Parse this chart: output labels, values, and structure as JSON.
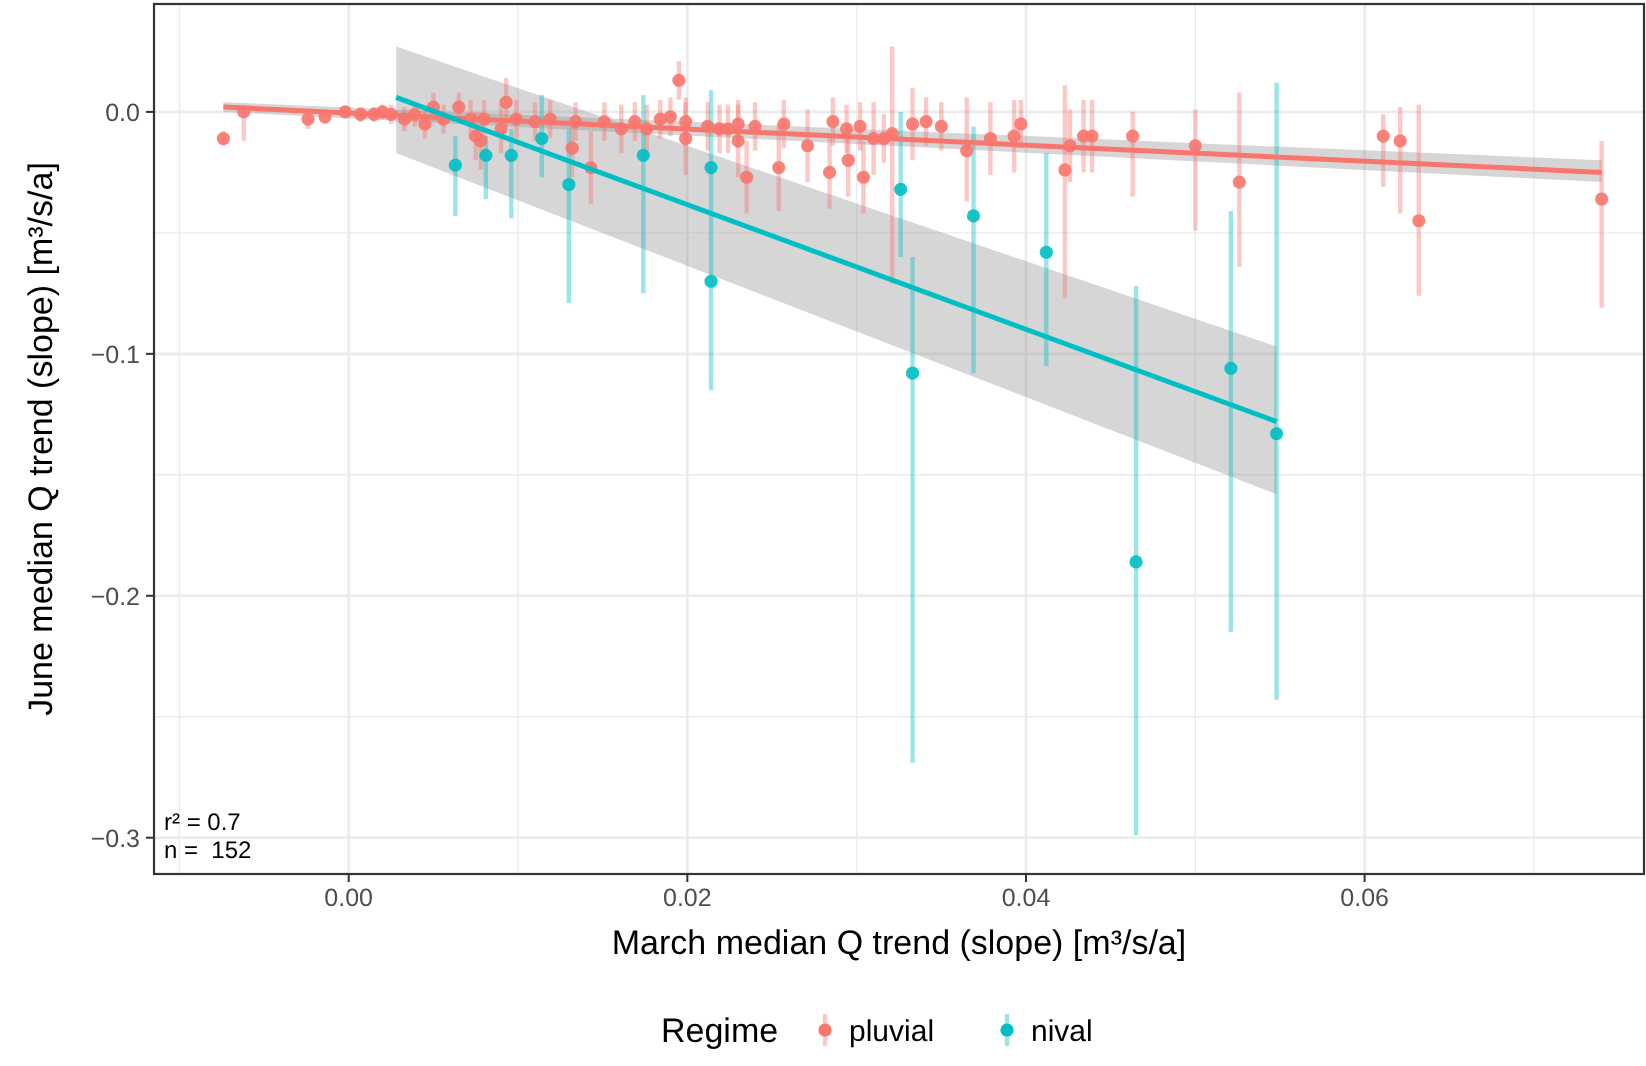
{
  "chart_data": {
    "type": "scatter",
    "xlabel": "March median Q trend (slope) [m³/s/a]",
    "ylabel": "June median Q trend (slope) [m³/s/a]",
    "legend_title": "Regime",
    "legend": "bottom",
    "grid": true,
    "marker": "circle",
    "xlim": [
      -0.0115,
      0.0765
    ],
    "ylim": [
      -0.315,
      0.0446
    ],
    "xticks": [
      {
        "value": 0,
        "label": "0.00"
      },
      {
        "value": 0.02,
        "label": "0.02"
      },
      {
        "value": 0.04,
        "label": "0.04"
      },
      {
        "value": 0.06,
        "label": "0.06"
      }
    ],
    "yticks": [
      {
        "value": 0,
        "label": "0.0"
      },
      {
        "value": -0.1,
        "label": "−0.1"
      },
      {
        "value": -0.2,
        "label": "−0.2"
      },
      {
        "value": -0.3,
        "label": "−0.3"
      }
    ],
    "annotations": [
      "r² = 0.7",
      "n =  152"
    ],
    "series": [
      {
        "type": "line",
        "marker": "none",
        "color": "#f8766d",
        "x": [
          -0.0074,
          0.074
        ],
        "values": [
          0.002,
          -0.025
        ],
        "lower": [
          0.0,
          -0.029
        ],
        "upper": [
          0.004,
          -0.02
        ]
      },
      {
        "type": "line",
        "marker": "none",
        "color": "#00bfc4",
        "x": [
          0.0028,
          0.0548
        ],
        "values": [
          0.006,
          -0.128
        ],
        "lower": [
          -0.017,
          -0.158
        ],
        "upper": [
          0.027,
          -0.097
        ]
      },
      {
        "name": "pluvial",
        "type": "scatter",
        "color": "#f8766d",
        "x": [
          -0.0074,
          -0.0062,
          -0.0024,
          -0.0014,
          -0.0002,
          0.0007,
          0.0015,
          0.002,
          0.0025,
          0.0033,
          0.0039,
          0.0045,
          0.005,
          0.0056,
          0.0065,
          0.0072,
          0.0075,
          0.0078,
          0.008,
          0.009,
          0.0093,
          0.0099,
          0.011,
          0.0119,
          0.0132,
          0.0134,
          0.0143,
          0.0151,
          0.0161,
          0.0169,
          0.0176,
          0.0184,
          0.019,
          0.0195,
          0.0199,
          0.0199,
          0.0212,
          0.0219,
          0.0224,
          0.023,
          0.023,
          0.0235,
          0.024,
          0.0254,
          0.0257,
          0.0271,
          0.0284,
          0.0286,
          0.0294,
          0.0295,
          0.0302,
          0.0304,
          0.031,
          0.0316,
          0.0321,
          0.0333,
          0.0341,
          0.035,
          0.0365,
          0.0379,
          0.0393,
          0.0397,
          0.0423,
          0.0426,
          0.0434,
          0.0439,
          0.0463,
          0.05,
          0.0526,
          0.0611,
          0.0621,
          0.0632,
          0.074
        ],
        "values": [
          -0.011,
          0.0,
          -0.003,
          -0.002,
          0.0,
          -0.001,
          -0.001,
          0.0,
          -0.001,
          -0.003,
          -0.001,
          -0.005,
          0.002,
          -0.003,
          0.002,
          -0.003,
          -0.01,
          -0.012,
          -0.003,
          -0.007,
          0.004,
          -0.003,
          -0.004,
          -0.003,
          -0.015,
          -0.004,
          -0.023,
          -0.004,
          -0.007,
          -0.004,
          -0.007,
          -0.003,
          -0.002,
          0.013,
          -0.004,
          -0.011,
          -0.006,
          -0.007,
          -0.007,
          -0.005,
          -0.012,
          -0.027,
          -0.006,
          -0.023,
          -0.005,
          -0.014,
          -0.025,
          -0.004,
          -0.007,
          -0.02,
          -0.006,
          -0.027,
          -0.011,
          -0.011,
          -0.009,
          -0.005,
          -0.004,
          -0.006,
          -0.016,
          -0.011,
          -0.01,
          -0.005,
          -0.024,
          -0.014,
          -0.01,
          -0.01,
          -0.01,
          -0.014,
          -0.029,
          -0.01,
          -0.012,
          -0.045,
          -0.036
        ],
        "errors": [
          0.003,
          [
            -0.012,
            0.002
          ],
          0.004,
          0.003,
          0.002,
          0.003,
          0.003,
          0.003,
          0.004,
          0.005,
          0.005,
          0.006,
          0.006,
          0.006,
          0.006,
          0.008,
          0.01,
          0.012,
          0.008,
          0.01,
          0.01,
          0.008,
          0.008,
          0.008,
          0.012,
          0.008,
          0.015,
          0.008,
          0.01,
          0.008,
          0.01,
          0.008,
          0.008,
          [
            0.005,
            0.021
          ],
          0.01,
          0.015,
          0.01,
          0.01,
          0.01,
          0.01,
          0.015,
          0.015,
          0.01,
          0.018,
          0.01,
          0.015,
          0.015,
          0.01,
          0.01,
          0.015,
          0.01,
          0.015,
          0.015,
          0.01,
          [
            -0.071,
            0.027
          ],
          0.015,
          0.01,
          0.01,
          [
            -0.037,
            0.006
          ],
          0.015,
          0.015,
          0.01,
          [
            -0.077,
            0.011
          ],
          0.015,
          0.015,
          0.015,
          [
            -0.035,
            0.0
          ],
          [
            -0.049,
            0.001
          ],
          [
            -0.064,
            0.008
          ],
          [
            -0.031,
            -0.001
          ],
          [
            -0.042,
            0.002
          ],
          [
            -0.076,
            0.003
          ],
          [
            -0.081,
            -0.012
          ]
        ]
      },
      {
        "name": "nival",
        "type": "scatter",
        "color": "#00bfc4",
        "x": [
          0.0063,
          0.0081,
          0.0096,
          0.0114,
          0.013,
          0.0174,
          0.0214,
          0.0214,
          0.0326,
          0.0333,
          0.0369,
          0.0412,
          0.0465,
          0.0521,
          0.0548
        ],
        "values": [
          -0.022,
          -0.018,
          -0.018,
          -0.011,
          -0.03,
          -0.018,
          -0.023,
          -0.07,
          -0.032,
          -0.108,
          -0.043,
          -0.058,
          -0.186,
          -0.106,
          -0.133
        ],
        "errors": [
          [
            -0.043,
            -0.01
          ],
          [
            -0.036,
            -0.01
          ],
          [
            -0.044,
            -0.007
          ],
          [
            -0.027,
            0.007
          ],
          [
            -0.079,
            -0.007
          ],
          [
            -0.075,
            0.007
          ],
          [
            -0.05,
            0.009
          ],
          [
            -0.115,
            -0.05
          ],
          [
            -0.06,
            0.0
          ],
          [
            -0.269,
            -0.06
          ],
          [
            -0.108,
            -0.006
          ],
          [
            -0.105,
            -0.017
          ],
          [
            -0.299,
            -0.072
          ],
          [
            -0.215,
            -0.041
          ],
          [
            -0.243,
            0.012
          ]
        ]
      }
    ]
  }
}
